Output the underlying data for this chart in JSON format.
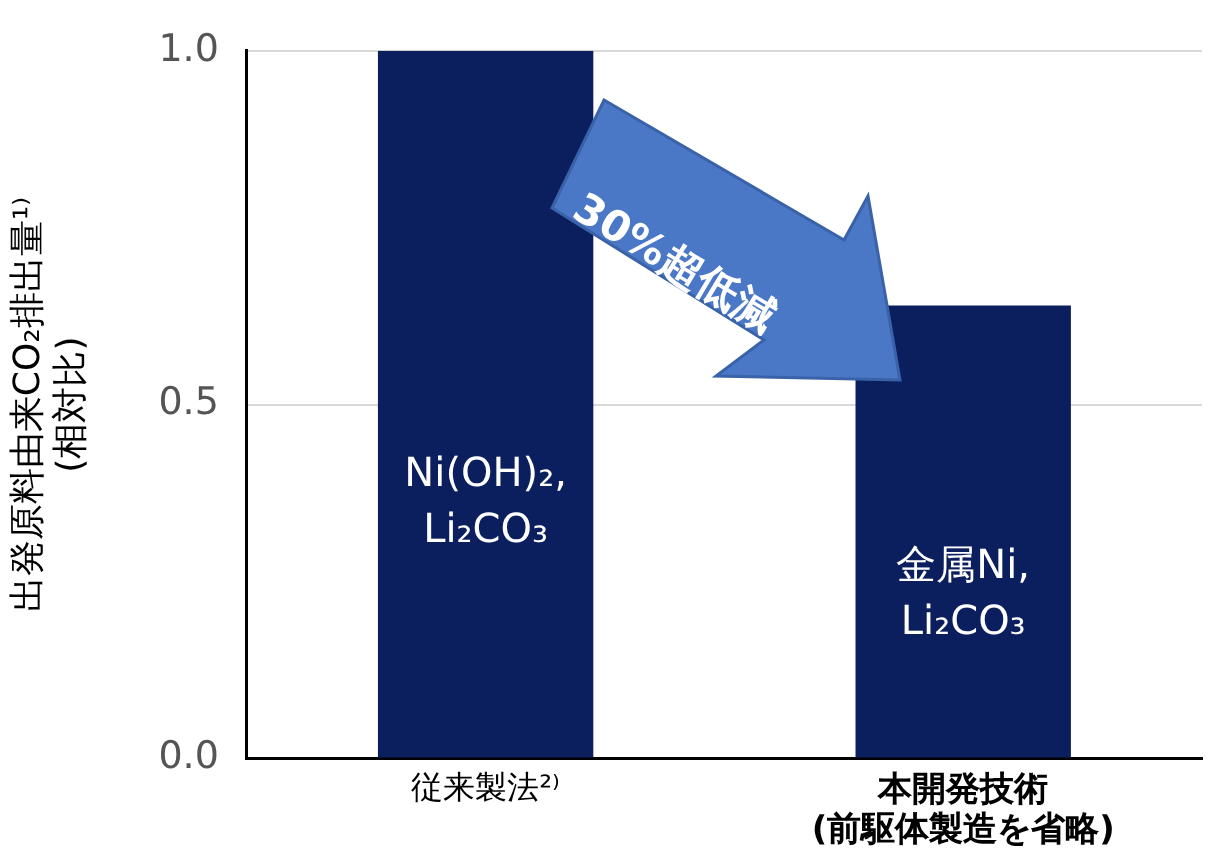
{
  "chart_data": {
    "type": "bar",
    "ylabel": "出発原料由来CO₂排出量¹⁾\n(相対比)",
    "categories": [
      "従来製法²⁾",
      "本開発技術\n(前駆体製造を省略)"
    ],
    "values": [
      1.0,
      0.64
    ],
    "color": "#0b1f5e",
    "ylim": [
      0,
      1
    ],
    "yticks": [
      {
        "value": 0,
        "label": "0.0"
      },
      0.5,
      {
        "value": 1,
        "label": "1.0"
      }
    ],
    "grid": "y",
    "annotations": [
      "Ni(OH)₂,\nLi₂CO₃",
      "金属Ni,\nLi₂CO₃",
      "30%超低減"
    ]
  }
}
